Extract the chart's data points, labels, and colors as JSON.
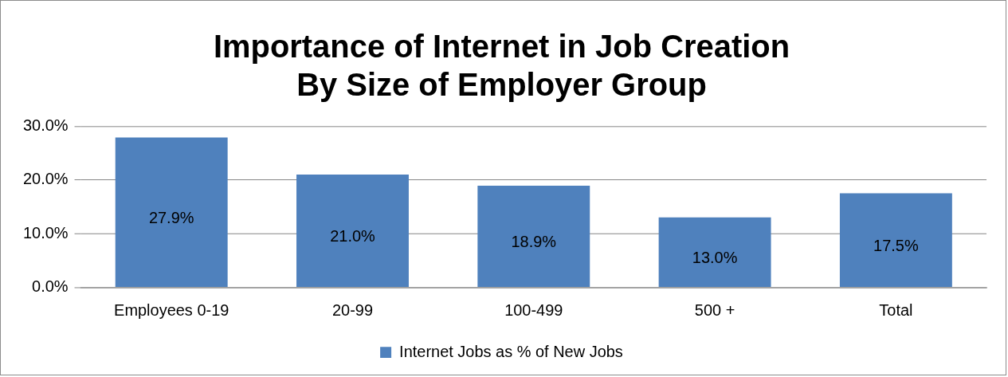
{
  "chart_data": {
    "type": "bar",
    "title": "Importance of Internet in Job Creation\nBy Size of Employer Group",
    "categories": [
      "Employees 0-19",
      "20-99",
      "100-499",
      "500 +",
      "Total"
    ],
    "series": [
      {
        "name": "Internet Jobs as % of New Jobs",
        "color": "#4f81bd",
        "values": [
          27.9,
          21.0,
          18.9,
          13.0,
          17.5
        ]
      }
    ],
    "value_labels": [
      "27.9%",
      "21.0%",
      "18.9%",
      "13.0%",
      "17.5%"
    ],
    "ylim": [
      0,
      30
    ],
    "yticks": [
      {
        "value": 0,
        "label": "0.0%"
      },
      {
        "value": 10,
        "label": "10.0%"
      },
      {
        "value": 20,
        "label": "20.0%"
      },
      {
        "value": 30,
        "label": "30.0%"
      }
    ],
    "grid": "y",
    "legend": "bottom"
  }
}
